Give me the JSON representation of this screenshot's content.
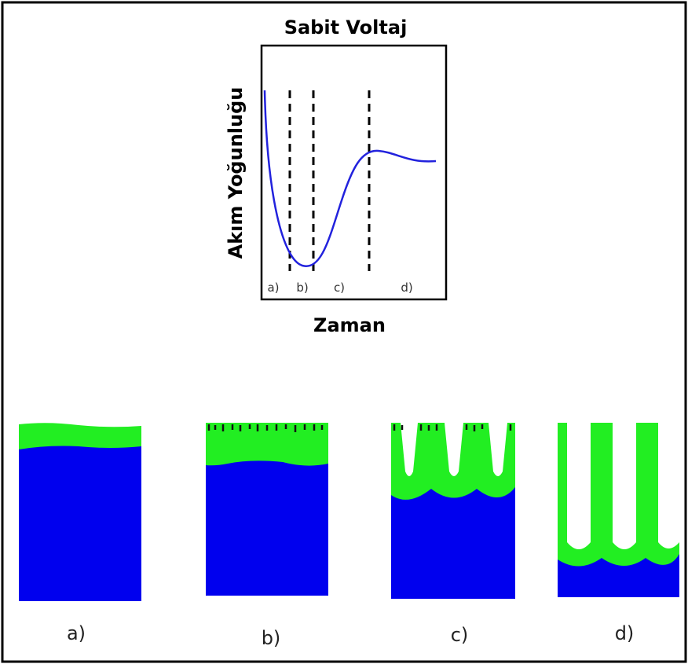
{
  "title": "Sabit Voltaj",
  "y_axis_label": "Akım Yoğunluğu",
  "x_axis_label": "Zaman",
  "regions": [
    "a)",
    "b)",
    "c)",
    "d)"
  ],
  "panels": [
    "a)",
    "b)",
    "c)",
    "d)"
  ]
}
